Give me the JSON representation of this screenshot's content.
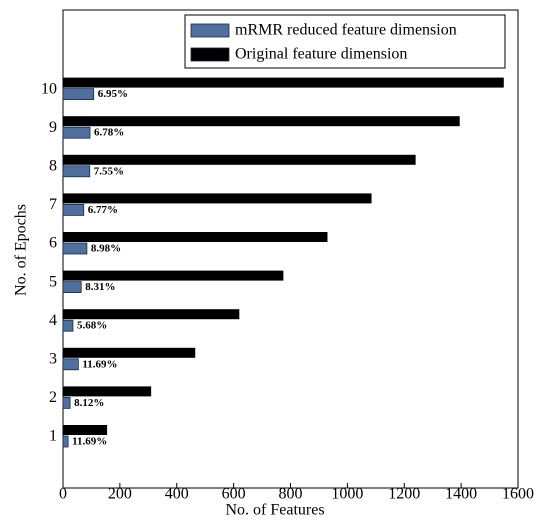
{
  "chart_data": {
    "type": "hbar",
    "xlabel": "No. of Features",
    "ylabel": "No. of Epochs",
    "categories": [
      "1",
      "2",
      "3",
      "4",
      "5",
      "6",
      "7",
      "8",
      "9",
      "10"
    ],
    "series": [
      {
        "name": "mRMR reduced feature dimension",
        "color": "#4f6f9f",
        "values": [
          18,
          25,
          54,
          35,
          64,
          84,
          73,
          94,
          95,
          108
        ],
        "labels": [
          "11.69%",
          "8.12%",
          "11.69%",
          "5.68%",
          "8.31%",
          "8.98%",
          "6.77%",
          "7.55%",
          "6.78%",
          "6.95%"
        ]
      },
      {
        "name": "Original feature dimension",
        "color": "#000000",
        "values": [
          155,
          310,
          465,
          620,
          775,
          930,
          1085,
          1240,
          1395,
          1550
        ]
      }
    ],
    "xlim": [
      0,
      1600
    ],
    "xticks": [
      0,
      200,
      400,
      600,
      800,
      1000,
      1200,
      1400,
      1600
    ],
    "legend": "top-right"
  }
}
